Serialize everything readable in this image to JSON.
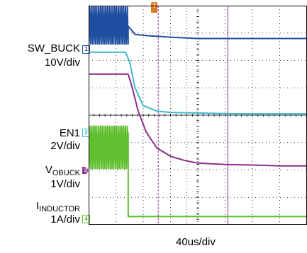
{
  "labels": {
    "ch1_name": "SW_BUCK",
    "ch1_scale": "10V/div",
    "ch2_name": "EN1",
    "ch2_scale": "2V/div",
    "ch3_name_main": "V",
    "ch3_name_sub": "OBUCK",
    "ch3_scale": "1V/div",
    "ch4_name_main": "I",
    "ch4_name_sub": "INDUCTOR",
    "ch4_scale": "1A/div",
    "time_scale": "40us/div"
  },
  "markers": {
    "ch1": "1",
    "ch2": "2",
    "ch3": "3",
    "ch4": "4",
    "trigger": "T"
  },
  "colors": {
    "ch1": "#1f4fa0",
    "ch2": "#3fb8cf",
    "ch3": "#8c2f8c",
    "ch4": "#5fbf2f",
    "trigger": "#e07a1e",
    "grid": "#000000"
  },
  "chart_data": {
    "type": "line",
    "title": "",
    "xlabel": "40us/div",
    "x_divisions": 8,
    "y_divisions": 8,
    "grid": true,
    "x_unit": "div",
    "series": [
      {
        "name": "SW_BUCK",
        "scale": "10V/div",
        "x": [
          0,
          0.6,
          0.6,
          1.45,
          1.45,
          1.7,
          2.2,
          3,
          4,
          5,
          6,
          7,
          8
        ],
        "y": [
          7.25,
          7.25,
          7.25,
          7.25,
          7.25,
          6.95,
          6.9,
          6.85,
          6.8,
          6.8,
          6.8,
          6.8,
          6.8
        ],
        "switching": {
          "x_start": 0,
          "x_end": 1.45,
          "low": 6.6,
          "high": 7.95
        }
      },
      {
        "name": "EN1",
        "x": [
          0,
          1.2,
          1.35,
          1.5,
          1.7,
          2.0,
          2.5,
          3,
          4,
          5,
          6,
          7,
          8
        ],
        "y": [
          6.3,
          6.3,
          6.3,
          5.95,
          5.0,
          4.35,
          4.15,
          4.1,
          4.08,
          4.06,
          4.05,
          4.05,
          4.05
        ]
      },
      {
        "name": "VOBUCK",
        "x": [
          0,
          1.45,
          1.6,
          1.8,
          2.1,
          2.5,
          3.0,
          3.5,
          4,
          5,
          6,
          7,
          8
        ],
        "y": [
          5.5,
          5.5,
          5.0,
          4.2,
          3.4,
          2.8,
          2.5,
          2.35,
          2.25,
          2.2,
          2.18,
          2.15,
          2.15
        ]
      },
      {
        "name": "IINDUCTOR",
        "scale": "1A/div",
        "x": [
          0,
          1.45,
          1.45,
          1.6,
          2,
          3,
          4,
          5,
          6,
          7,
          8
        ],
        "y": [
          3.35,
          3.35,
          0.3,
          0.3,
          0.3,
          0.3,
          0.3,
          0.3,
          0.3,
          0.3,
          0.3
        ],
        "switching": {
          "x_start": 0,
          "x_end": 1.45,
          "low": 2.05,
          "high": 3.6
        }
      }
    ],
    "cursors_x": [
      2.55,
      3.6,
      5.1
    ]
  }
}
